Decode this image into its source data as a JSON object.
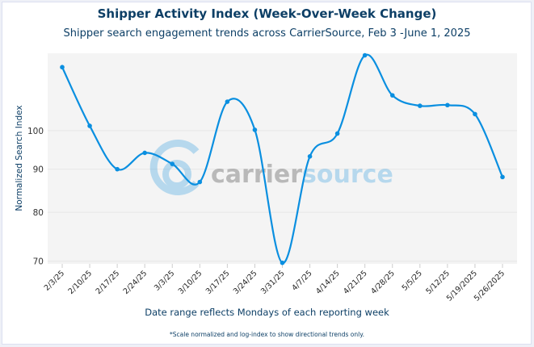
{
  "chart_data": {
    "type": "line",
    "title": "Shipper Activity Index (Week-Over-Week Change)",
    "subtitle": "Shipper search engagement trends across CarrierSource, Feb 3 -June 1, 2025",
    "xlabel": "Date range reflects Mondays of each reporting week",
    "ylabel": "Normalized Search Index",
    "footnote": "*Scale normalized and log-index to show directional trends only.",
    "y_scale": "log",
    "ylim": [
      69.5,
      123.5
    ],
    "yticks": [
      70,
      80,
      90,
      100
    ],
    "grid": true,
    "legend": "none",
    "line_color": "#0a8fe0",
    "plot_background": "#f4f4f4",
    "watermark": "carriersource",
    "categories": [
      "2/3/25",
      "2/10/25",
      "2/17/25",
      "2/24/25",
      "3/3/25",
      "3/10/25",
      "3/17/25",
      "3/24/25",
      "3/31/25",
      "4/7/25",
      "4/14/25",
      "4/21/25",
      "4/28/25",
      "5/5/25",
      "5/12/25",
      "5/19/2025",
      "5/26/2025"
    ],
    "values": [
      118.9,
      101.3,
      90.0,
      94.1,
      91.3,
      86.9,
      108.2,
      100.2,
      69.7,
      93.2,
      99.2,
      122.8,
      110.1,
      107.0,
      107.2,
      104.6,
      88.1
    ]
  }
}
